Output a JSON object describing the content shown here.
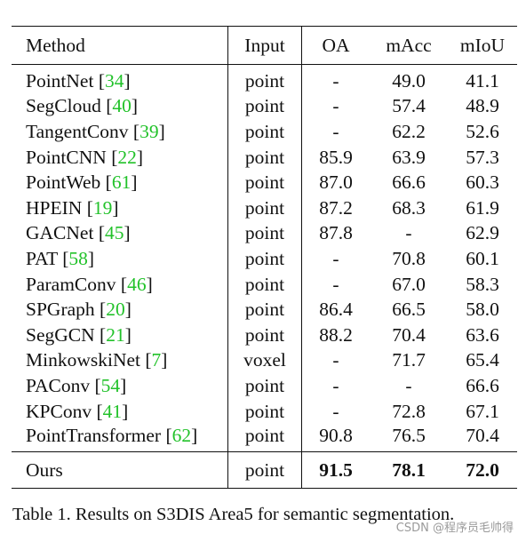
{
  "table": {
    "headers": [
      "Method",
      "Input",
      "OA",
      "mAcc",
      "mIoU"
    ],
    "rows": [
      {
        "method": "PointNet",
        "ref": "34",
        "input": "point",
        "oa": "-",
        "macc": "49.0",
        "miou": "41.1"
      },
      {
        "method": "SegCloud",
        "ref": "40",
        "input": "point",
        "oa": "-",
        "macc": "57.4",
        "miou": "48.9"
      },
      {
        "method": "TangentConv",
        "ref": "39",
        "input": "point",
        "oa": "-",
        "macc": "62.2",
        "miou": "52.6"
      },
      {
        "method": "PointCNN",
        "ref": "22",
        "input": "point",
        "oa": "85.9",
        "macc": "63.9",
        "miou": "57.3"
      },
      {
        "method": "PointWeb",
        "ref": "61",
        "input": "point",
        "oa": "87.0",
        "macc": "66.6",
        "miou": "60.3"
      },
      {
        "method": "HPEIN",
        "ref": "19",
        "input": "point",
        "oa": "87.2",
        "macc": "68.3",
        "miou": "61.9"
      },
      {
        "method": "GACNet",
        "ref": "45",
        "input": "point",
        "oa": "87.8",
        "macc": "-",
        "miou": "62.9"
      },
      {
        "method": "PAT",
        "ref": "58",
        "input": "point",
        "oa": "-",
        "macc": "70.8",
        "miou": "60.1"
      },
      {
        "method": "ParamConv",
        "ref": "46",
        "input": "point",
        "oa": "-",
        "macc": "67.0",
        "miou": "58.3"
      },
      {
        "method": "SPGraph",
        "ref": "20",
        "input": "point",
        "oa": "86.4",
        "macc": "66.5",
        "miou": "58.0"
      },
      {
        "method": "SegGCN",
        "ref": "21",
        "input": "point",
        "oa": "88.2",
        "macc": "70.4",
        "miou": "63.6"
      },
      {
        "method": "MinkowskiNet",
        "ref": "7",
        "input": "voxel",
        "oa": "-",
        "macc": "71.7",
        "miou": "65.4"
      },
      {
        "method": "PAConv",
        "ref": "54",
        "input": "point",
        "oa": "-",
        "macc": "-",
        "miou": "66.6"
      },
      {
        "method": "KPConv",
        "ref": "41",
        "input": "point",
        "oa": "-",
        "macc": "72.8",
        "miou": "67.1"
      },
      {
        "method": "PointTransformer",
        "ref": "62",
        "input": "point",
        "oa": "90.8",
        "macc": "76.5",
        "miou": "70.4"
      }
    ],
    "ours": {
      "method": "Ours",
      "input": "point",
      "oa": "91.5",
      "macc": "78.1",
      "miou": "72.0"
    }
  },
  "caption": "Table 1. Results on S3DIS Area5 for semantic segmentation.",
  "watermark": "CSDN @程序员毛帅得",
  "colors": {
    "citation": "#22c22a",
    "text": "#111111",
    "rules": "#111111"
  }
}
